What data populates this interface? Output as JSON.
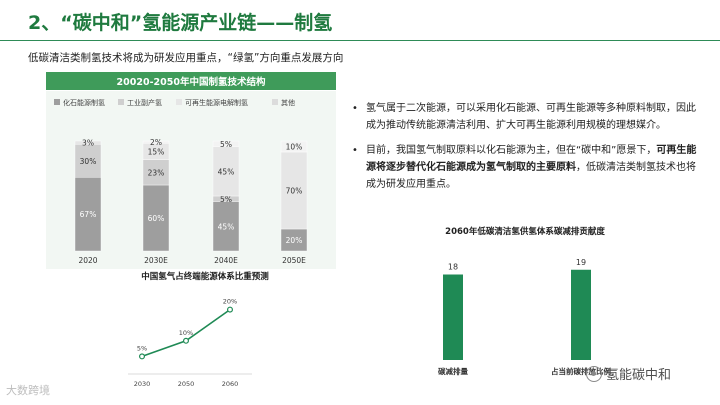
{
  "header": {
    "title": "2、“碳中和”氢能源产业链——制氢",
    "subtitle": "低碳清洁类制氢技术将成为研发应用重点，“绿氢”方向重点发展方向"
  },
  "bullets": [
    {
      "text": "氢气属于二次能源，可以采用化石能源、可再生能源等多种原料制取，因此成为推动传统能源清洁利用、扩大可再生能源利用规模的理想媒介。"
    },
    {
      "pre": "目前，我国氢气制取原料以化石能源为主，但在“碳中和”愿景下，",
      "bold": "可再生能源将逐步替代化石能源成为氢气制取的主要原料",
      "post": "，低碳清洁类制氢技术也将成为研发应用重点。"
    }
  ],
  "bullet_symbol": "•",
  "watermark": {
    "left": "大数跨境",
    "right": "氢能碳中和"
  },
  "colors": {
    "green_dark": "#1f7a3f",
    "green": "#3f9b5a",
    "bar_green": "#1f8a55",
    "grey1": "#9e9e9e",
    "grey2": "#cfcfcf",
    "grey3": "#e6e6e6",
    "grey4": "#f3f3f3"
  },
  "chart_data": [
    {
      "type": "bar",
      "stacked": true,
      "title": "20020-2050年中国制氢技术结构",
      "categories": [
        "2020",
        "2030E",
        "2040E",
        "2050E"
      ],
      "series": [
        {
          "name": "化石能源制氢",
          "values": [
            67,
            60,
            45,
            20
          ],
          "labels": [
            "67%",
            "60%",
            "45%",
            "20%"
          ],
          "color": "#9e9e9e"
        },
        {
          "name": "工业副产氢",
          "values": [
            30,
            23,
            5,
            0
          ],
          "labels": [
            "30%",
            "23%",
            "5%",
            ""
          ],
          "color": "#cfcfcf"
        },
        {
          "name": "可再生能源电解制氢",
          "values": [
            3,
            15,
            45,
            70
          ],
          "labels": [
            "3%",
            "15%",
            "45%",
            "70%"
          ],
          "color": "#e6e6e6"
        },
        {
          "name": "其他",
          "values": [
            0,
            2,
            5,
            10
          ],
          "labels": [
            "",
            "2%",
            "5%",
            "10%"
          ],
          "color": "#f3f3f3"
        }
      ],
      "ylim": [
        0,
        100
      ],
      "legend": "top"
    },
    {
      "type": "line",
      "title": "中国氢气占终端能源体系比重预测",
      "x": [
        "2030",
        "2050",
        "2060"
      ],
      "values": [
        5,
        10,
        20
      ],
      "labels": [
        "5%",
        "10%",
        "20%"
      ],
      "ylim": [
        0,
        25
      ]
    },
    {
      "type": "bar",
      "title": "2060年低碳清洁氢供氢体系碳减排贡献度",
      "categories": [
        "碳减排量",
        "占当前碳排放比例"
      ],
      "values": [
        18,
        19
      ],
      "labels": [
        "18",
        "19"
      ],
      "ylim": [
        0,
        20
      ]
    }
  ]
}
